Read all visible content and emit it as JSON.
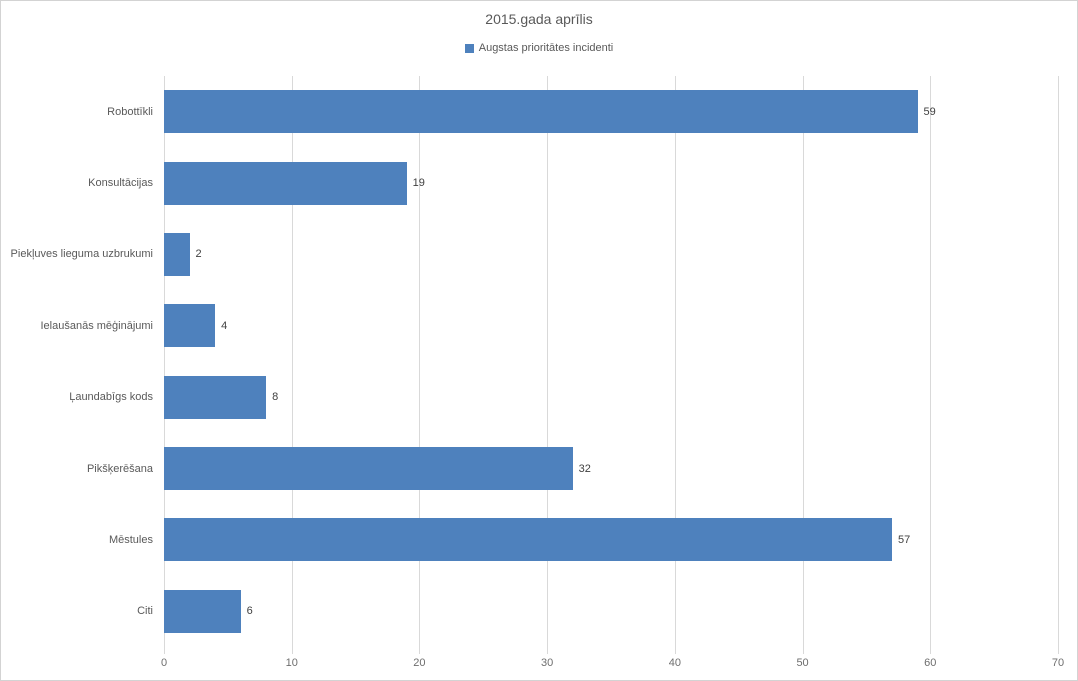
{
  "chart_data": {
    "type": "bar",
    "orientation": "horizontal",
    "title": "2015.gada aprīlis",
    "legend": [
      {
        "label": "Augstas prioritātes incidenti",
        "color": "#4e81bd"
      }
    ],
    "legend_position": "top-center",
    "categories": [
      "Robottīkli",
      "Konsultācijas",
      "Piekļuves lieguma uzbrukumi",
      "Ielaušanās mēģinājumi",
      "Ļaundabīgs kods",
      "Pikšķerēšana",
      "Mēstules",
      "Citi"
    ],
    "series": [
      {
        "name": "Augstas prioritātes incidenti",
        "values": [
          59,
          19,
          2,
          4,
          8,
          32,
          57,
          6
        ]
      }
    ],
    "data_labels": [
      "59",
      "19",
      "2",
      "4",
      "8",
      "32",
      "57",
      "6"
    ],
    "xlabel": "",
    "ylabel": "",
    "xlim": [
      0,
      70
    ],
    "xticks": [
      0,
      10,
      20,
      30,
      40,
      50,
      60,
      70
    ],
    "grid": "vertical"
  },
  "colors": {
    "bar": "#4e81bd",
    "gridline": "#d9d9d9",
    "title_text": "#595959",
    "legend_text": "#595959",
    "category_text": "#595959",
    "value_text": "#404040",
    "axis_tick_text": "#6e6e6e",
    "chart_border": "#d3d3d3",
    "background": "#ffffff"
  }
}
